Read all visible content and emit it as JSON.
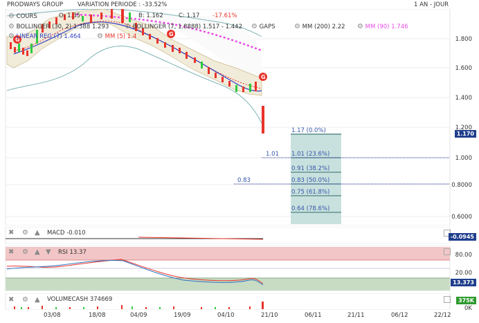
{
  "header": {
    "company": "PRODWAYS GROUP",
    "variation": "VARIATION PERIODE : -33.52%",
    "period": "1 AN - JOUR"
  },
  "legend": {
    "cours": {
      "label": "COURS",
      "o": "O: 1.35",
      "b": "B: 1.162",
      "c": "C: 1.17",
      "change": "-17.61%"
    },
    "bollinger1": "BOLLINGER (30, 2) 1.388  1.293",
    "bollinger2": "BOLLINGER (7, 1.8888)  1.517 - 1.442",
    "gaps": "GAPS",
    "mm200": "MM (200)  2.22",
    "mm90": "MM (90)  1.746",
    "linreg": "LINEAR REG (7)  1.464",
    "mm5": "MM (5)  1.4"
  },
  "price_axis": [
    "1.800",
    "1.600",
    "1.400",
    "1.200",
    "1.000",
    "0.8000",
    "0.6000"
  ],
  "last_price_tag": "1.170",
  "fibonacci": {
    "levels": [
      "1.17 (0.0%)",
      "1.01 (23.6%)",
      "0.91 (38.2%)",
      "0.83 (50.0%)",
      "0.75 (61.8%)",
      "0.64 (78.6%)"
    ],
    "marker_101": "1.01",
    "marker_083": "0.83"
  },
  "macd": {
    "label": "MACD",
    "value": "-0.010",
    "tag": "-0.0945"
  },
  "rsi": {
    "label": "RSI",
    "value": "13.37",
    "axis": [
      "80.00",
      "20.00"
    ],
    "tag": "13.373"
  },
  "volume": {
    "label": "VOLUMECASH",
    "value": "374669",
    "tag": "375K",
    "axis0": "0K"
  },
  "x_axis": [
    "03/08",
    "18/08",
    "04/09",
    "19/09",
    "04/10",
    "21/10",
    "06/11",
    "21/11",
    "06/12",
    "22/12"
  ],
  "colors": {
    "up": "#2ecc40",
    "down": "#e8332a",
    "mm90": "#e84ae8",
    "fib": "#bcd9d6",
    "rsi_ob": "#f2c6c6",
    "rsi_os": "#c8dcc4",
    "tag_blue": "#1f3e8c",
    "tag_green": "#2f9a2f"
  }
}
